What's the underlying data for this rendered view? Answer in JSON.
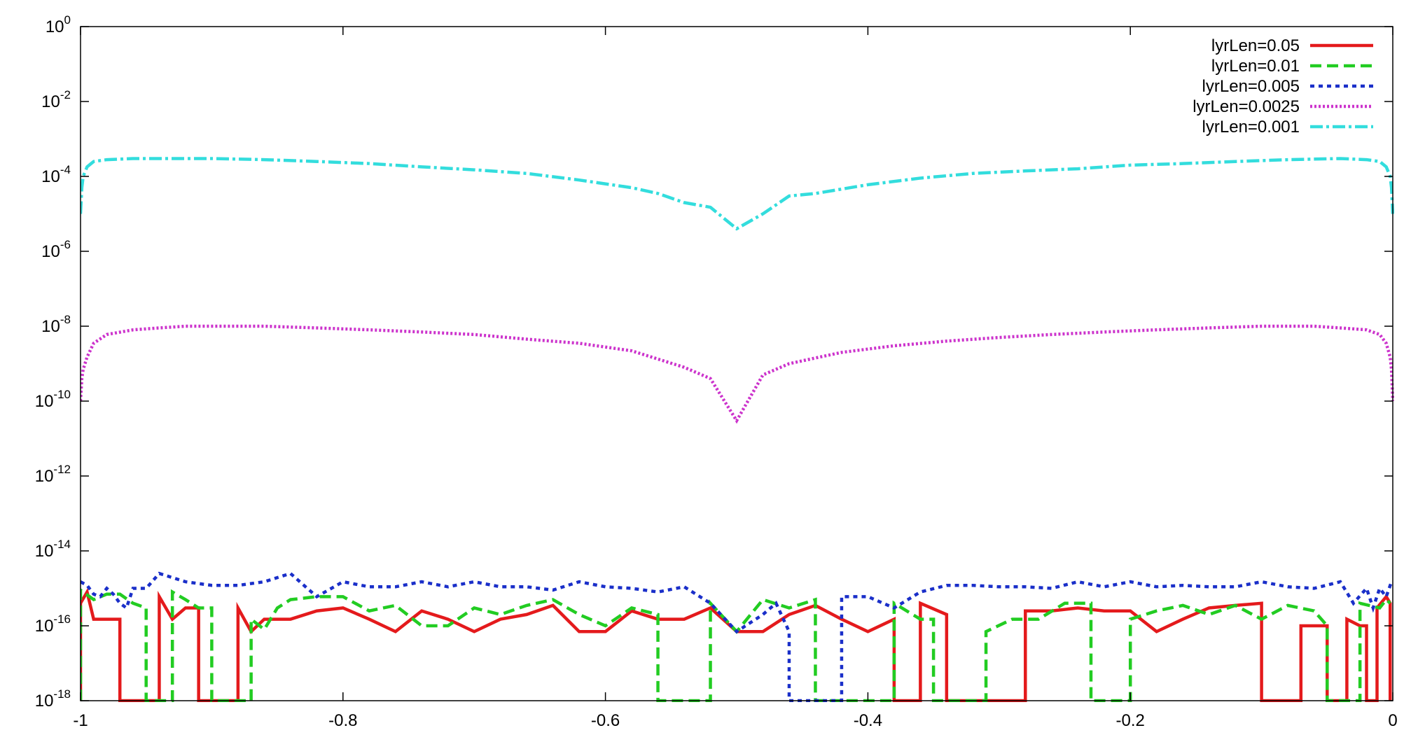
{
  "chart_data": {
    "type": "line",
    "title": "",
    "xlabel": "",
    "ylabel": "",
    "xlim": [
      -1,
      0
    ],
    "ylim": [
      1e-18,
      1
    ],
    "yscale": "log",
    "grid": false,
    "legend_position": "top-right",
    "x_ticks": [
      {
        "value": -1,
        "label": "-1"
      },
      {
        "value": -0.8,
        "label": "-0.8"
      },
      {
        "value": -0.6,
        "label": "-0.6"
      },
      {
        "value": -0.4,
        "label": "-0.4"
      },
      {
        "value": -0.2,
        "label": "-0.2"
      },
      {
        "value": 0,
        "label": "0"
      }
    ],
    "y_ticks": [
      {
        "value": 1,
        "base": "10",
        "exp": "0"
      },
      {
        "value": 0.01,
        "base": "10",
        "exp": "-2"
      },
      {
        "value": 0.0001,
        "base": "10",
        "exp": "-4"
      },
      {
        "value": 1e-06,
        "base": "10",
        "exp": "-6"
      },
      {
        "value": 1e-08,
        "base": "10",
        "exp": "-8"
      },
      {
        "value": 1e-10,
        "base": "10",
        "exp": "-10"
      },
      {
        "value": 1e-12,
        "base": "10",
        "exp": "-12"
      },
      {
        "value": 1e-14,
        "base": "10",
        "exp": "-14"
      },
      {
        "value": 1e-16,
        "base": "10",
        "exp": "-16"
      },
      {
        "value": 1e-18,
        "base": "10",
        "exp": "-18"
      }
    ],
    "series": [
      {
        "name": "lyrLen=0.05",
        "color": "#e41a1c",
        "dash": "solid",
        "points": [
          [
            -1.0,
            1e-18
          ],
          [
            -1.0,
            4e-16
          ],
          [
            -0.995,
            8e-16
          ],
          [
            -0.99,
            1.5e-16
          ],
          [
            -0.97,
            1.5e-16
          ],
          [
            -0.97,
            1e-18
          ],
          [
            -0.94,
            1e-18
          ],
          [
            -0.94,
            6e-16
          ],
          [
            -0.93,
            1.5e-16
          ],
          [
            -0.92,
            3e-16
          ],
          [
            -0.91,
            3e-16
          ],
          [
            -0.91,
            1e-18
          ],
          [
            -0.88,
            1e-18
          ],
          [
            -0.88,
            3e-16
          ],
          [
            -0.87,
            7e-17
          ],
          [
            -0.86,
            1.5e-16
          ],
          [
            -0.84,
            1.5e-16
          ],
          [
            -0.82,
            2.5e-16
          ],
          [
            -0.8,
            3e-16
          ],
          [
            -0.78,
            1.5e-16
          ],
          [
            -0.76,
            7e-17
          ],
          [
            -0.74,
            2.5e-16
          ],
          [
            -0.72,
            1.5e-16
          ],
          [
            -0.7,
            7e-17
          ],
          [
            -0.68,
            1.5e-16
          ],
          [
            -0.66,
            2e-16
          ],
          [
            -0.64,
            3.5e-16
          ],
          [
            -0.62,
            7e-17
          ],
          [
            -0.6,
            7e-17
          ],
          [
            -0.58,
            2.5e-16
          ],
          [
            -0.56,
            1.5e-16
          ],
          [
            -0.54,
            1.5e-16
          ],
          [
            -0.52,
            3e-16
          ],
          [
            -0.5,
            7e-17
          ],
          [
            -0.48,
            7e-17
          ],
          [
            -0.46,
            2e-16
          ],
          [
            -0.44,
            3.5e-16
          ],
          [
            -0.42,
            1.5e-16
          ],
          [
            -0.4,
            7e-17
          ],
          [
            -0.38,
            1.5e-16
          ],
          [
            -0.38,
            1e-18
          ],
          [
            -0.36,
            1e-18
          ],
          [
            -0.36,
            4e-16
          ],
          [
            -0.34,
            2e-16
          ],
          [
            -0.34,
            1e-18
          ],
          [
            -0.28,
            1e-18
          ],
          [
            -0.28,
            2.5e-16
          ],
          [
            -0.26,
            2.5e-16
          ],
          [
            -0.24,
            3e-16
          ],
          [
            -0.22,
            2.5e-16
          ],
          [
            -0.2,
            2.5e-16
          ],
          [
            -0.18,
            7e-17
          ],
          [
            -0.16,
            1.5e-16
          ],
          [
            -0.14,
            3e-16
          ],
          [
            -0.12,
            3.5e-16
          ],
          [
            -0.1,
            4e-16
          ],
          [
            -0.1,
            1e-18
          ],
          [
            -0.07,
            1e-18
          ],
          [
            -0.07,
            1e-16
          ],
          [
            -0.05,
            1e-16
          ],
          [
            -0.05,
            1e-18
          ],
          [
            -0.035,
            1e-18
          ],
          [
            -0.035,
            1.5e-16
          ],
          [
            -0.025,
            1e-16
          ],
          [
            -0.02,
            1e-16
          ],
          [
            -0.02,
            1e-18
          ],
          [
            -0.012,
            1e-18
          ],
          [
            -0.012,
            3e-16
          ],
          [
            -0.005,
            6e-16
          ],
          [
            -0.002,
            4e-16
          ],
          [
            -0.002,
            1e-18
          ]
        ]
      },
      {
        "name": "lyrLen=0.01",
        "color": "#22cc22",
        "dash": "16,8",
        "points": [
          [
            -1.0,
            1e-18
          ],
          [
            -1.0,
            9e-16
          ],
          [
            -0.99,
            5e-16
          ],
          [
            -0.98,
            7e-16
          ],
          [
            -0.97,
            7e-16
          ],
          [
            -0.96,
            4e-16
          ],
          [
            -0.95,
            3e-16
          ],
          [
            -0.95,
            1e-18
          ],
          [
            -0.93,
            1e-18
          ],
          [
            -0.93,
            8e-16
          ],
          [
            -0.92,
            5e-16
          ],
          [
            -0.91,
            3e-16
          ],
          [
            -0.9,
            3e-16
          ],
          [
            -0.9,
            1e-18
          ],
          [
            -0.87,
            1e-18
          ],
          [
            -0.87,
            1.5e-16
          ],
          [
            -0.86,
            8e-17
          ],
          [
            -0.85,
            3e-16
          ],
          [
            -0.84,
            5e-16
          ],
          [
            -0.82,
            6e-16
          ],
          [
            -0.8,
            6e-16
          ],
          [
            -0.78,
            2.5e-16
          ],
          [
            -0.76,
            3.5e-16
          ],
          [
            -0.74,
            1e-16
          ],
          [
            -0.72,
            1e-16
          ],
          [
            -0.7,
            3e-16
          ],
          [
            -0.68,
            2e-16
          ],
          [
            -0.66,
            3.5e-16
          ],
          [
            -0.64,
            5e-16
          ],
          [
            -0.62,
            2e-16
          ],
          [
            -0.6,
            1e-16
          ],
          [
            -0.58,
            3e-16
          ],
          [
            -0.56,
            2e-16
          ],
          [
            -0.56,
            1e-18
          ],
          [
            -0.52,
            1e-18
          ],
          [
            -0.52,
            4e-16
          ],
          [
            -0.5,
            7e-17
          ],
          [
            -0.48,
            5e-16
          ],
          [
            -0.46,
            3e-16
          ],
          [
            -0.44,
            5e-16
          ],
          [
            -0.44,
            1e-18
          ],
          [
            -0.38,
            1e-18
          ],
          [
            -0.38,
            4e-16
          ],
          [
            -0.36,
            1.5e-16
          ],
          [
            -0.35,
            1.5e-16
          ],
          [
            -0.35,
            1e-18
          ],
          [
            -0.31,
            1e-18
          ],
          [
            -0.31,
            7e-17
          ],
          [
            -0.29,
            1.5e-16
          ],
          [
            -0.27,
            1.5e-16
          ],
          [
            -0.25,
            4e-16
          ],
          [
            -0.23,
            4e-16
          ],
          [
            -0.23,
            1e-18
          ],
          [
            -0.2,
            1e-18
          ],
          [
            -0.2,
            1.5e-16
          ],
          [
            -0.18,
            2.5e-16
          ],
          [
            -0.16,
            3.5e-16
          ],
          [
            -0.14,
            2e-16
          ],
          [
            -0.12,
            3.5e-16
          ],
          [
            -0.1,
            1.5e-16
          ],
          [
            -0.08,
            3.5e-16
          ],
          [
            -0.06,
            2.5e-16
          ],
          [
            -0.05,
            1e-16
          ],
          [
            -0.05,
            1e-18
          ],
          [
            -0.025,
            1e-18
          ],
          [
            -0.025,
            4e-16
          ],
          [
            -0.01,
            3e-16
          ],
          [
            -0.005,
            5e-16
          ],
          [
            -0.002,
            4e-16
          ]
        ]
      },
      {
        "name": "lyrLen=0.005",
        "color": "#1a2fc9",
        "dash": "6,6",
        "points": [
          [
            -1.0,
            1.5e-15
          ],
          [
            -0.995,
            1.2e-15
          ],
          [
            -0.99,
            7e-16
          ],
          [
            -0.985,
            6e-16
          ],
          [
            -0.98,
            1e-15
          ],
          [
            -0.975,
            7e-16
          ],
          [
            -0.97,
            4e-16
          ],
          [
            -0.965,
            3e-16
          ],
          [
            -0.96,
            1e-15
          ],
          [
            -0.95,
            1e-15
          ],
          [
            -0.94,
            2.5e-15
          ],
          [
            -0.92,
            1.5e-15
          ],
          [
            -0.9,
            1.2e-15
          ],
          [
            -0.88,
            1.2e-15
          ],
          [
            -0.86,
            1.5e-15
          ],
          [
            -0.84,
            2.5e-15
          ],
          [
            -0.82,
            6e-16
          ],
          [
            -0.8,
            1.5e-15
          ],
          [
            -0.78,
            1.1e-15
          ],
          [
            -0.76,
            1.1e-15
          ],
          [
            -0.74,
            1.5e-15
          ],
          [
            -0.72,
            1.1e-15
          ],
          [
            -0.7,
            1.5e-15
          ],
          [
            -0.68,
            1.1e-15
          ],
          [
            -0.66,
            1.1e-15
          ],
          [
            -0.64,
            9e-16
          ],
          [
            -0.62,
            1.5e-15
          ],
          [
            -0.6,
            1.1e-15
          ],
          [
            -0.58,
            1e-15
          ],
          [
            -0.56,
            8e-16
          ],
          [
            -0.54,
            1.1e-15
          ],
          [
            -0.52,
            4e-16
          ],
          [
            -0.5,
            7e-17
          ],
          [
            -0.48,
            2e-16
          ],
          [
            -0.47,
            4e-16
          ],
          [
            -0.46,
            7e-17
          ],
          [
            -0.46,
            1e-18
          ],
          [
            -0.42,
            1e-18
          ],
          [
            -0.42,
            6e-16
          ],
          [
            -0.4,
            6e-16
          ],
          [
            -0.38,
            3e-16
          ],
          [
            -0.36,
            8e-16
          ],
          [
            -0.34,
            1.2e-15
          ],
          [
            -0.32,
            1.2e-15
          ],
          [
            -0.3,
            1.1e-15
          ],
          [
            -0.28,
            1.1e-15
          ],
          [
            -0.26,
            1e-15
          ],
          [
            -0.24,
            1.5e-15
          ],
          [
            -0.22,
            1.1e-15
          ],
          [
            -0.2,
            1.5e-15
          ],
          [
            -0.18,
            1.1e-15
          ],
          [
            -0.16,
            1.2e-15
          ],
          [
            -0.14,
            1.1e-15
          ],
          [
            -0.12,
            1.1e-15
          ],
          [
            -0.1,
            1.5e-15
          ],
          [
            -0.08,
            1.1e-15
          ],
          [
            -0.06,
            1e-15
          ],
          [
            -0.04,
            1.5e-15
          ],
          [
            -0.03,
            4e-16
          ],
          [
            -0.02,
            1e-15
          ],
          [
            -0.015,
            3e-16
          ],
          [
            -0.01,
            1e-15
          ],
          [
            -0.005,
            6e-16
          ],
          [
            -0.001,
            1.5e-15
          ]
        ]
      },
      {
        "name": "lyrLen=0.0025",
        "color": "#cc33cc",
        "dash": "3,3",
        "points": [
          [
            -1.0,
            1e-10
          ],
          [
            -0.999,
            4e-10
          ],
          [
            -0.998,
            7e-10
          ],
          [
            -0.995,
            1.5e-09
          ],
          [
            -0.99,
            3.5e-09
          ],
          [
            -0.98,
            6e-09
          ],
          [
            -0.96,
            8e-09
          ],
          [
            -0.94,
            9e-09
          ],
          [
            -0.92,
            1e-08
          ],
          [
            -0.9,
            1e-08
          ],
          [
            -0.86,
            1e-08
          ],
          [
            -0.82,
            9e-09
          ],
          [
            -0.78,
            8e-09
          ],
          [
            -0.74,
            7e-09
          ],
          [
            -0.7,
            6e-09
          ],
          [
            -0.66,
            4.5e-09
          ],
          [
            -0.62,
            3.5e-09
          ],
          [
            -0.58,
            2.2e-09
          ],
          [
            -0.54,
            8e-10
          ],
          [
            -0.52,
            4e-10
          ],
          [
            -0.5,
            3e-11
          ],
          [
            -0.48,
            5e-10
          ],
          [
            -0.46,
            1e-09
          ],
          [
            -0.42,
            2e-09
          ],
          [
            -0.38,
            3e-09
          ],
          [
            -0.34,
            4e-09
          ],
          [
            -0.3,
            5e-09
          ],
          [
            -0.26,
            6e-09
          ],
          [
            -0.22,
            7e-09
          ],
          [
            -0.18,
            8e-09
          ],
          [
            -0.14,
            9e-09
          ],
          [
            -0.1,
            1e-08
          ],
          [
            -0.06,
            1e-08
          ],
          [
            -0.04,
            9e-09
          ],
          [
            -0.02,
            8e-09
          ],
          [
            -0.01,
            6e-09
          ],
          [
            -0.005,
            3.5e-09
          ],
          [
            -0.002,
            1.5e-09
          ],
          [
            -0.001,
            7e-10
          ],
          [
            0.0,
            1e-10
          ]
        ]
      },
      {
        "name": "lyrLen=0.001",
        "color": "#33dddd",
        "dash": "18,5,4,5",
        "points": [
          [
            -1.0,
            1e-05
          ],
          [
            -0.999,
            5e-05
          ],
          [
            -0.998,
            0.0001
          ],
          [
            -0.995,
            0.00018
          ],
          [
            -0.99,
            0.00025
          ],
          [
            -0.98,
            0.00028
          ],
          [
            -0.96,
            0.0003
          ],
          [
            -0.94,
            0.0003
          ],
          [
            -0.9,
            0.0003
          ],
          [
            -0.86,
            0.00028
          ],
          [
            -0.82,
            0.00025
          ],
          [
            -0.78,
            0.00022
          ],
          [
            -0.74,
            0.00018
          ],
          [
            -0.7,
            0.00015
          ],
          [
            -0.66,
            0.00012
          ],
          [
            -0.62,
            8e-05
          ],
          [
            -0.58,
            5e-05
          ],
          [
            -0.56,
            3.5e-05
          ],
          [
            -0.54,
            2e-05
          ],
          [
            -0.52,
            1.5e-05
          ],
          [
            -0.5,
            4e-06
          ],
          [
            -0.48,
            1e-05
          ],
          [
            -0.46,
            3e-05
          ],
          [
            -0.44,
            3.5e-05
          ],
          [
            -0.4,
            6e-05
          ],
          [
            -0.36,
            9e-05
          ],
          [
            -0.32,
            0.00012
          ],
          [
            -0.28,
            0.00014
          ],
          [
            -0.24,
            0.00016
          ],
          [
            -0.2,
            0.0002
          ],
          [
            -0.16,
            0.00022
          ],
          [
            -0.12,
            0.00025
          ],
          [
            -0.08,
            0.00028
          ],
          [
            -0.04,
            0.0003
          ],
          [
            -0.02,
            0.00028
          ],
          [
            -0.01,
            0.00025
          ],
          [
            -0.005,
            0.00018
          ],
          [
            -0.002,
            0.0001
          ],
          [
            -0.001,
            5e-05
          ],
          [
            0.0,
            1e-05
          ]
        ]
      }
    ]
  }
}
